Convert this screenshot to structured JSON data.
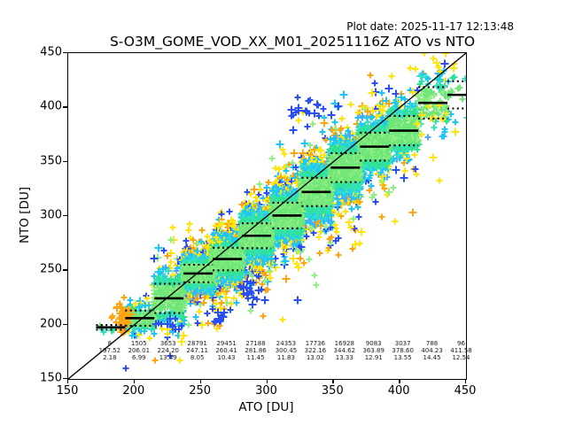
{
  "header": {
    "plot_date": "Plot date: 2025-11-17 12:13:48"
  },
  "chart_data": {
    "type": "scatter",
    "title": "S-O3M_GOME_VOD_XX_M01_20251116Z ATO vs NTO",
    "xlabel": "ATO [DU]",
    "ylabel": "NTO [DU]",
    "xlim": [
      150,
      450
    ],
    "ylim": [
      150,
      450
    ],
    "xticks": [
      150,
      200,
      250,
      300,
      350,
      400,
      450
    ],
    "yticks": [
      150,
      200,
      250,
      300,
      350,
      400,
      450
    ],
    "grid": false,
    "legend": false,
    "identity_line": {
      "from": [
        150,
        150
      ],
      "to": [
        450,
        450
      ]
    },
    "marker": "plus",
    "bin_halfwidth_du": 11,
    "bins": [
      {
        "center": 182,
        "count": "8",
        "mean": "197.52",
        "std": "2.18"
      },
      {
        "center": 204,
        "count": "1505",
        "mean": "206.01",
        "std": "6.99"
      },
      {
        "center": 226,
        "count": "3653",
        "mean": "224.20",
        "std": "13.49"
      },
      {
        "center": 248,
        "count": "28791",
        "mean": "247.11",
        "std": "8.05"
      },
      {
        "center": 270,
        "count": "29451",
        "mean": "260.41",
        "std": "10.43"
      },
      {
        "center": 292,
        "count": "27188",
        "mean": "281.86",
        "std": "11.45"
      },
      {
        "center": 315,
        "count": "24353",
        "mean": "300.45",
        "std": "11.83"
      },
      {
        "center": 337,
        "count": "17736",
        "mean": "322.16",
        "std": "13.02"
      },
      {
        "center": 359,
        "count": "16928",
        "mean": "344.62",
        "std": "13.33"
      },
      {
        "center": 381,
        "count": "9083",
        "mean": "363.89",
        "std": "12.91"
      },
      {
        "center": 403,
        "count": "3037",
        "mean": "378.60",
        "std": "13.55"
      },
      {
        "center": 425,
        "count": "788",
        "mean": "404.23",
        "std": "14.45"
      },
      {
        "center": 447,
        "count": "96",
        "mean": "411.58",
        "std": "12.54"
      }
    ],
    "stat_rows": [
      "count",
      "mean",
      "std"
    ],
    "palette": {
      "core_green": "#6fe678",
      "light_green": "#93ee85",
      "spring_green": "#2ee38c",
      "turquoise": "#35dfc4",
      "cyan": "#1ec6f5",
      "sky_blue": "#4fa8ff",
      "blue": "#2b4ff2",
      "yellow": "#ffe40d",
      "orange": "#ffa513",
      "line_black": "#000000"
    },
    "accent_clusters": [
      {
        "color": "orange",
        "cx": 191,
        "cy": 207,
        "sx": 3.5,
        "sy": 8,
        "n": 38
      },
      {
        "color": "blue",
        "cx": 288,
        "cy": 230,
        "sx": 4.5,
        "sy": 6.5,
        "n": 22
      },
      {
        "color": "blue",
        "cx": 263,
        "cy": 208,
        "sx": 4.5,
        "sy": 5,
        "n": 13
      },
      {
        "color": "blue",
        "cx": 226,
        "cy": 199,
        "sx": 6,
        "sy": 4.5,
        "n": 11
      },
      {
        "color": "blue",
        "cx": 331,
        "cy": 399,
        "sx": 8,
        "sy": 8,
        "n": 20
      },
      {
        "color": "yellow",
        "cx": 429,
        "cy": 441,
        "sx": 8,
        "sy": 5,
        "n": 9
      },
      {
        "color": "yellow",
        "cx": 423,
        "cy": 391,
        "sx": 9,
        "sy": 6,
        "n": 10
      },
      {
        "color": "yellow",
        "cx": 262,
        "cy": 281,
        "sx": 5,
        "sy": 5,
        "n": 7
      }
    ],
    "render": {
      "seed": 20251116,
      "count_exponent": 0.7,
      "max_points_per_bin": 1200
    }
  }
}
